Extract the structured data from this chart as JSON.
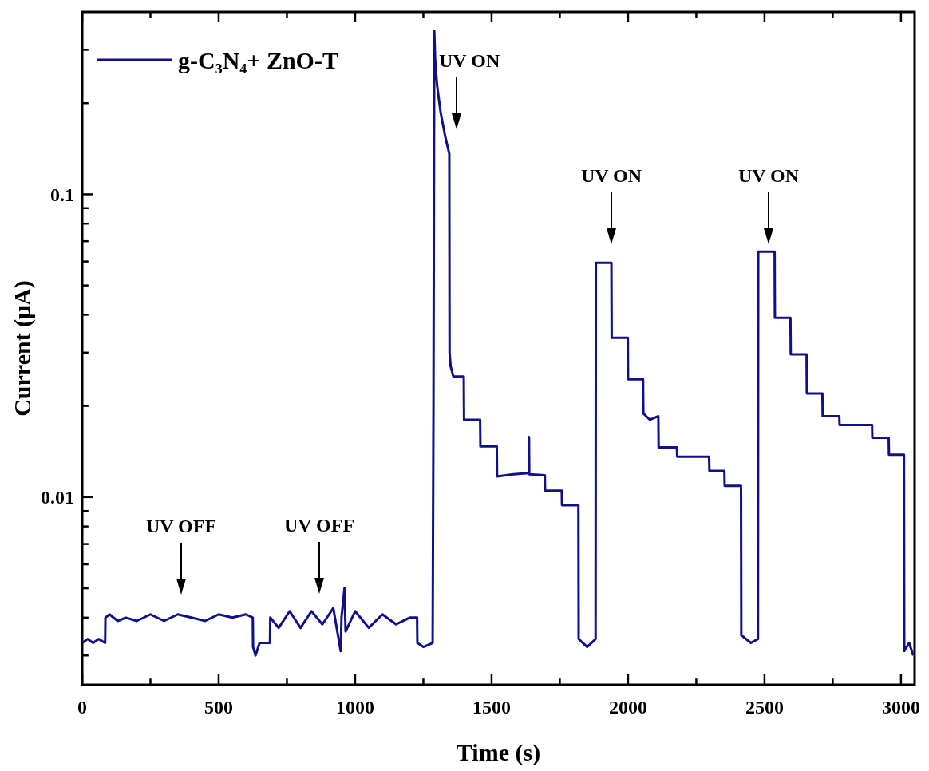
{
  "chart_data": {
    "type": "line",
    "xlabel": "Time (s)",
    "ylabel": "Current (μA)",
    "log": true,
    "legend": "top left",
    "xlim": [
      0,
      3050
    ],
    "ylim": [
      0.0024,
      0.4
    ],
    "xticks": [
      0,
      {
        "value": 250,
        "label": null
      },
      500,
      {
        "value": 750,
        "label": null
      },
      1000,
      {
        "value": 1250,
        "label": null
      },
      1500,
      {
        "value": 1750,
        "label": null
      },
      2000,
      {
        "value": 2250,
        "label": null
      },
      2500,
      {
        "value": 2750,
        "label": null
      },
      3000
    ],
    "yticks": [
      {
        "value": 0.003,
        "label": null
      },
      {
        "value": 0.004,
        "label": null
      },
      {
        "value": 0.005,
        "label": null
      },
      {
        "value": 0.006,
        "label": null
      },
      {
        "value": 0.007,
        "label": null
      },
      {
        "value": 0.008,
        "label": null
      },
      {
        "value": 0.009,
        "label": null
      },
      0.01,
      {
        "value": 0.02,
        "label": null
      },
      {
        "value": 0.03,
        "label": null
      },
      {
        "value": 0.04,
        "label": null
      },
      {
        "value": 0.05,
        "label": null
      },
      {
        "value": 0.06,
        "label": null
      },
      {
        "value": 0.07,
        "label": null
      },
      {
        "value": 0.08,
        "label": null
      },
      {
        "value": 0.09,
        "label": null
      },
      0.1,
      {
        "value": 0.2,
        "label": null
      },
      {
        "value": 0.3,
        "label": null
      }
    ],
    "series": [
      {
        "name": "g-C₃N₄+ ZnO-T",
        "color": "#10108c",
        "x": [
          0,
          20,
          40,
          60,
          84,
          85,
          100,
          130,
          160,
          200,
          250,
          300,
          350,
          400,
          450,
          500,
          550,
          600,
          625,
          626,
          635,
          650,
          688,
          689,
          720,
          760,
          800,
          840,
          880,
          920,
          947,
          950,
          961,
          965,
          1000,
          1050,
          1100,
          1150,
          1200,
          1227,
          1228,
          1250,
          1284,
          1287,
          1290,
          1293,
          1300,
          1313,
          1330,
          1345,
          1346,
          1350,
          1360,
          1398,
          1399,
          1458,
          1459,
          1519,
          1520,
          1580,
          1636,
          1637,
          1638,
          1695,
          1696,
          1757,
          1758,
          1818,
          1819,
          1850,
          1881,
          1882,
          1939,
          1940,
          1999,
          2000,
          2055,
          2056,
          2080,
          2111,
          2112,
          2179,
          2180,
          2297,
          2298,
          2353,
          2354,
          2414,
          2415,
          2450,
          2476,
          2477,
          2537,
          2538,
          2595,
          2596,
          2654,
          2655,
          2712,
          2713,
          2774,
          2775,
          2894,
          2895,
          2955,
          2956,
          3011,
          3012,
          3030,
          3045
        ],
        "values": [
          0.0033,
          0.0034,
          0.0033,
          0.0034,
          0.0033,
          0.004,
          0.0041,
          0.0039,
          0.004,
          0.0039,
          0.0041,
          0.0039,
          0.0041,
          0.004,
          0.0039,
          0.0041,
          0.004,
          0.0041,
          0.004,
          0.0032,
          0.003,
          0.0033,
          0.0033,
          0.004,
          0.0037,
          0.0042,
          0.0037,
          0.0042,
          0.0038,
          0.0043,
          0.0031,
          0.004,
          0.005,
          0.0036,
          0.0042,
          0.0037,
          0.0041,
          0.0038,
          0.004,
          0.004,
          0.0033,
          0.0032,
          0.0033,
          0.02,
          0.346,
          0.28,
          0.23,
          0.187,
          0.155,
          0.136,
          0.03,
          0.027,
          0.025,
          0.025,
          0.018,
          0.018,
          0.0147,
          0.0147,
          0.0117,
          0.0119,
          0.012,
          0.0158,
          0.0119,
          0.0118,
          0.0105,
          0.0105,
          0.0094,
          0.0094,
          0.0034,
          0.0032,
          0.0034,
          0.0594,
          0.0594,
          0.0336,
          0.0336,
          0.0245,
          0.0245,
          0.0189,
          0.018,
          0.0185,
          0.0146,
          0.0146,
          0.0136,
          0.0136,
          0.0122,
          0.0122,
          0.0109,
          0.0109,
          0.0035,
          0.0033,
          0.0034,
          0.0647,
          0.0647,
          0.0391,
          0.0391,
          0.0296,
          0.0296,
          0.022,
          0.022,
          0.0185,
          0.0185,
          0.0173,
          0.0173,
          0.0157,
          0.0157,
          0.0138,
          0.0138,
          0.0031,
          0.0033,
          0.003
        ]
      }
    ],
    "annotations": [
      "UV OFF",
      "UV OFF",
      "UV ON",
      "UV ON",
      "UV ON"
    ]
  }
}
